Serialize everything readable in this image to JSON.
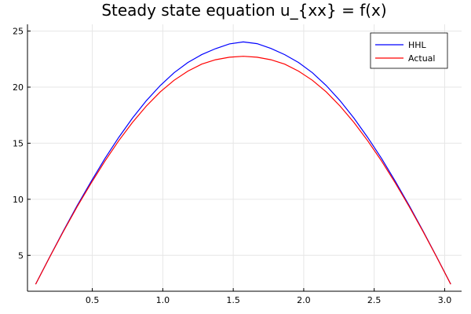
{
  "chart_data": {
    "type": "line",
    "title": "Steady state equation u_{xx} = f(x)",
    "xlabel": "",
    "ylabel": "",
    "xlim": [
      0.04,
      3.12
    ],
    "ylim": [
      1.8,
      25.6
    ],
    "xticks": [
      0.5,
      1.0,
      1.5,
      2.0,
      2.5,
      3.0
    ],
    "xtick_labels": [
      "0.5",
      "1.0",
      "1.5",
      "2.0",
      "2.5",
      "3.0"
    ],
    "yticks": [
      5,
      10,
      15,
      20,
      25
    ],
    "ytick_labels": [
      "5",
      "10",
      "15",
      "20",
      "25"
    ],
    "grid": true,
    "legend_position": "top-right",
    "x": [
      0.098,
      0.196,
      0.294,
      0.392,
      0.491,
      0.589,
      0.687,
      0.785,
      0.883,
      0.982,
      1.08,
      1.178,
      1.276,
      1.374,
      1.473,
      1.571,
      1.669,
      1.767,
      1.865,
      1.963,
      2.062,
      2.16,
      2.258,
      2.356,
      2.454,
      2.553,
      2.651,
      2.749,
      2.847,
      2.945,
      3.043
    ],
    "series": [
      {
        "name": "HHL",
        "color": "#0000ff",
        "values": [
          2.43,
          4.82,
          7.16,
          9.42,
          11.58,
          13.62,
          15.51,
          17.24,
          18.79,
          20.14,
          21.28,
          22.2,
          22.9,
          23.43,
          23.86,
          24.03,
          23.88,
          23.45,
          22.9,
          22.2,
          21.28,
          20.14,
          18.79,
          17.24,
          15.51,
          13.62,
          11.58,
          9.42,
          7.16,
          4.82,
          2.43
        ]
      },
      {
        "name": "Actual",
        "color": "#ff0000",
        "values": [
          2.42,
          4.8,
          7.11,
          9.33,
          11.43,
          13.4,
          15.22,
          16.86,
          18.31,
          19.57,
          20.61,
          21.43,
          22.05,
          22.44,
          22.67,
          22.75,
          22.67,
          22.44,
          22.05,
          21.43,
          20.61,
          19.57,
          18.31,
          16.86,
          15.22,
          13.4,
          11.43,
          9.33,
          7.11,
          4.8,
          2.42
        ]
      }
    ]
  }
}
